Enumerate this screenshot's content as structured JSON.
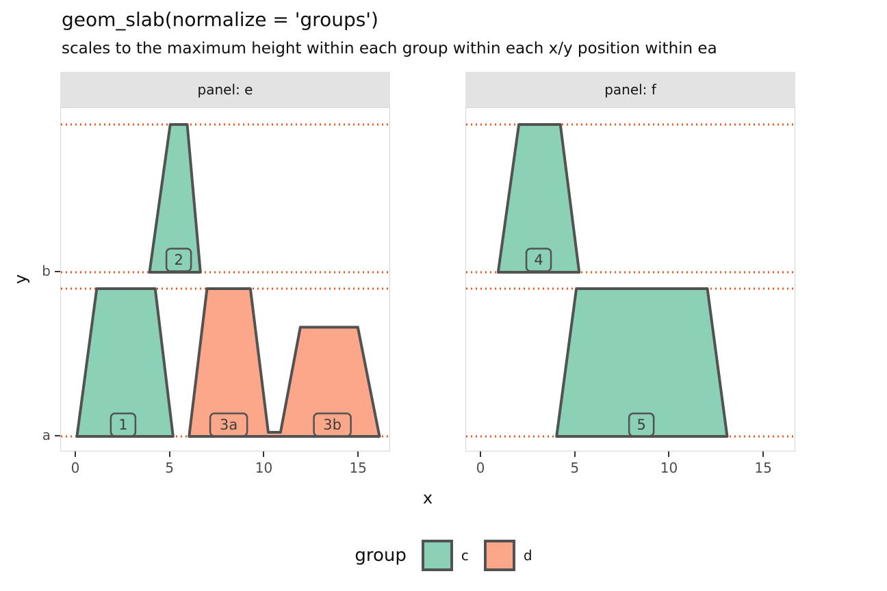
{
  "chart_data": {
    "type": "area",
    "title": "geom_slab(normalize = 'groups')",
    "subtitle": "scales to the maximum height within each group within each x/y position within ea",
    "xlabel": "x",
    "ylabel": "y",
    "x_ticks": [
      "0",
      "5",
      "10",
      "15"
    ],
    "y_ticks": [
      {
        "label": "b",
        "y": 2
      },
      {
        "label": "a",
        "y": 1
      }
    ],
    "xlim": [
      -0.8,
      16.7
    ],
    "ylim": [
      0.904,
      3.0
    ],
    "grid": false,
    "legend_position": "bottom",
    "slab_max_height": 0.9,
    "reference_lines": {
      "ys": [
        1,
        1.9,
        2,
        2.9
      ],
      "style": "dotted",
      "color": "#f4511c"
    },
    "colors": {
      "c": "#8bd1b6",
      "d": "#fca78a",
      "outline": "#525252",
      "strip_bg": "#e3e3e3",
      "panel_border": "#d6d6d6",
      "tick_text": "#4d4d4d",
      "label_text": "#3d3d3d"
    },
    "panels": [
      {
        "strip": "panel: e",
        "slabs": [
          {
            "group": "c",
            "baseline": 1,
            "points": [
              [
                0.05,
                0
              ],
              [
                1.1,
                0.9
              ],
              [
                4.2,
                0.9
              ],
              [
                5.15,
                0
              ]
            ]
          },
          {
            "group": "c",
            "baseline": 2,
            "points": [
              [
                3.9,
                0
              ],
              [
                5.0,
                0.9
              ],
              [
                5.9,
                0.9
              ],
              [
                6.6,
                0
              ]
            ]
          },
          {
            "group": "d",
            "baseline": 1,
            "points": [
              [
                6.0,
                0
              ],
              [
                6.95,
                0.9
              ],
              [
                9.25,
                0.9
              ],
              [
                10.2,
                0.025
              ],
              [
                10.85,
                0.025
              ],
              [
                11.9,
                0.665
              ],
              [
                14.95,
                0.665
              ],
              [
                16.1,
                0
              ]
            ]
          }
        ],
        "labels": [
          {
            "text": "1",
            "x": 2.5,
            "y": 1.071,
            "group": "c"
          },
          {
            "text": "2",
            "x": 5.45,
            "y": 2.075,
            "group": "c"
          },
          {
            "text": "3a",
            "x": 8.1,
            "y": 1.071,
            "group": "d"
          },
          {
            "text": "3b",
            "x": 13.6,
            "y": 1.071,
            "group": "d"
          }
        ]
      },
      {
        "strip": "panel: f",
        "slabs": [
          {
            "group": "c",
            "baseline": 2,
            "points": [
              [
                0.9,
                0
              ],
              [
                2.0,
                0.9
              ],
              [
                4.2,
                0.9
              ],
              [
                5.2,
                0
              ]
            ]
          },
          {
            "group": "c",
            "baseline": 1,
            "points": [
              [
                4.0,
                0
              ],
              [
                5.05,
                0.9
              ],
              [
                12.0,
                0.9
              ],
              [
                13.05,
                0
              ]
            ]
          }
        ],
        "labels": [
          {
            "text": "4",
            "x": 3.05,
            "y": 2.075,
            "group": "c"
          },
          {
            "text": "5",
            "x": 8.5,
            "y": 1.071,
            "group": "c"
          }
        ]
      }
    ],
    "legend": {
      "title": "group",
      "entries": [
        {
          "label": "c",
          "color_key": "c"
        },
        {
          "label": "d",
          "color_key": "d"
        }
      ]
    }
  }
}
